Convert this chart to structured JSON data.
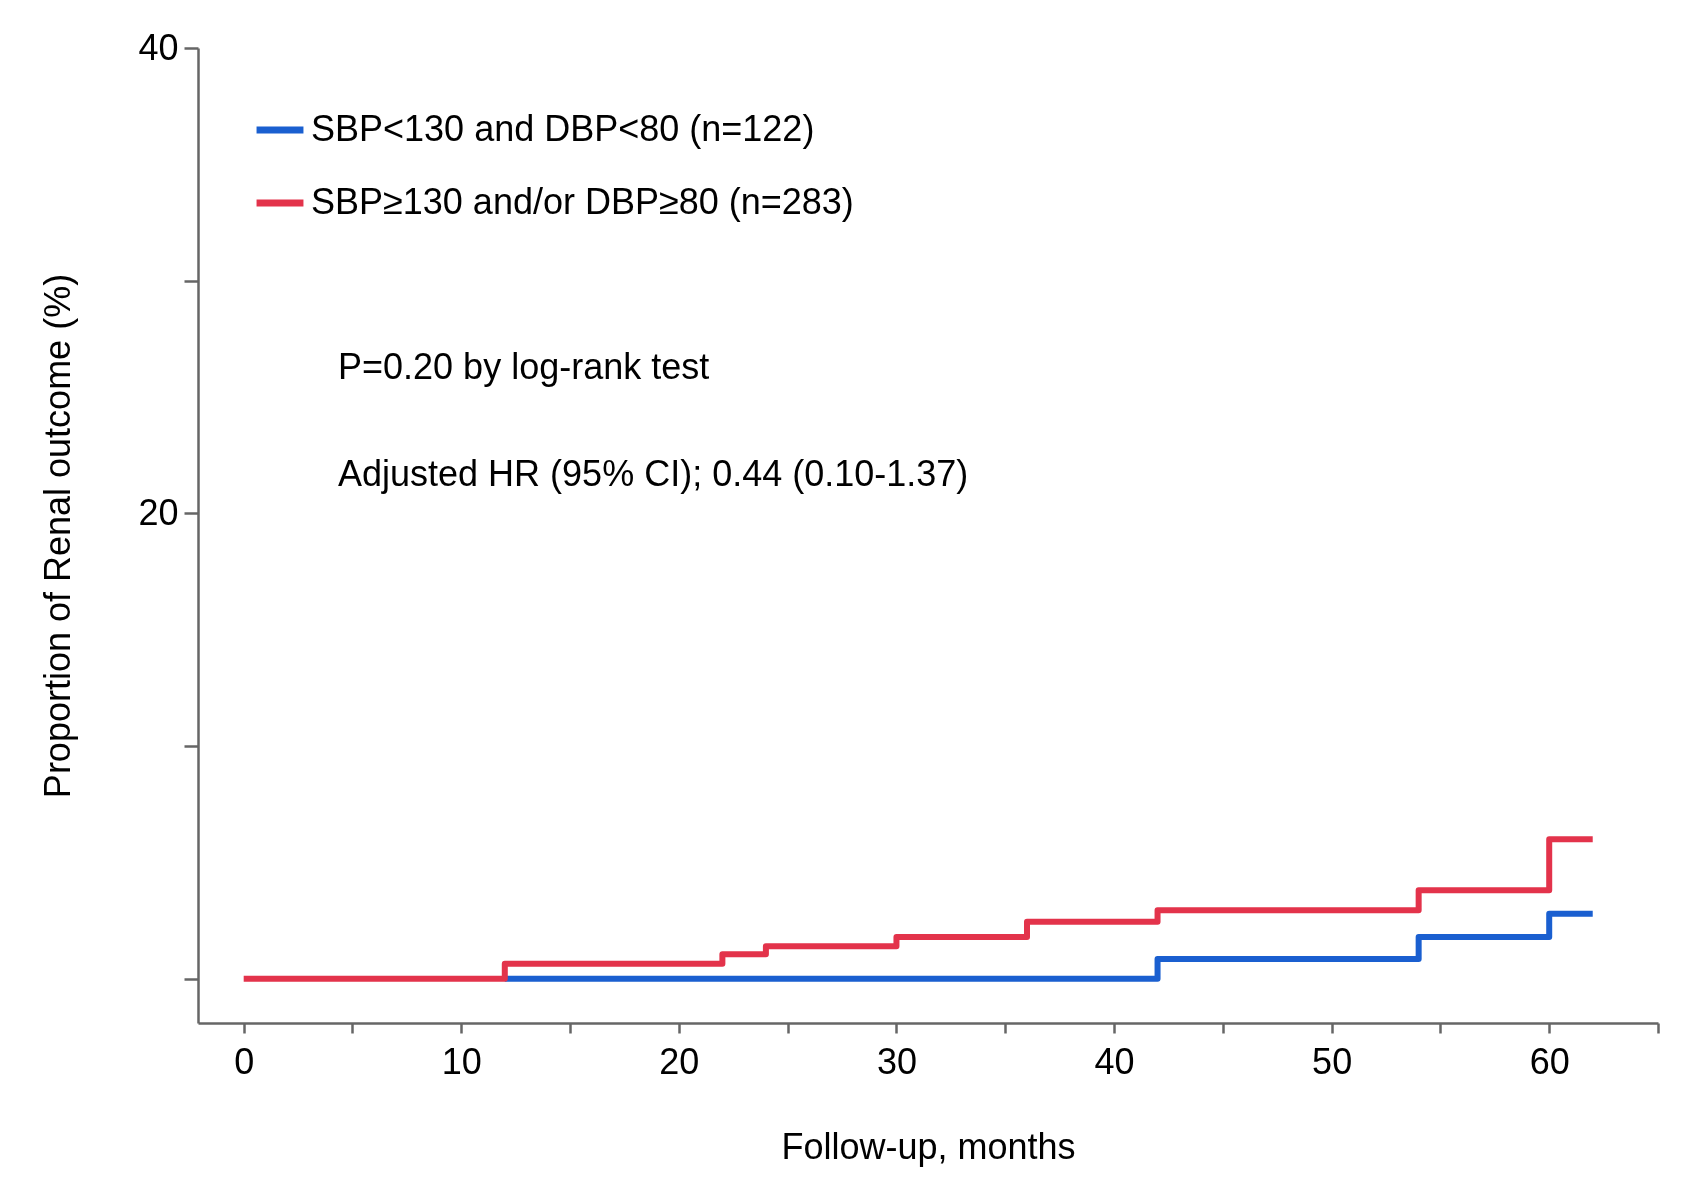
{
  "chart_data": {
    "type": "step",
    "xlabel": "Follow-up, months",
    "ylabel": "Proportion of Renal outcome (%)",
    "xlim": [
      -2.1,
      65
    ],
    "ylim": [
      -1.9,
      40
    ],
    "xticks": [
      0,
      {
        "value": 5,
        "label": null
      },
      10,
      {
        "value": 15,
        "label": null
      },
      20,
      {
        "value": 25,
        "label": null
      },
      30,
      {
        "value": 35,
        "label": null
      },
      40,
      {
        "value": 45,
        "label": null
      },
      50,
      {
        "value": 55,
        "label": null
      },
      60,
      {
        "value": 65,
        "label": null
      }
    ],
    "yticks": [
      {
        "value": 0,
        "label": null
      },
      {
        "value": 10,
        "label": null
      },
      20,
      {
        "value": 30,
        "label": null
      },
      40
    ],
    "grid": false,
    "legend": "top left",
    "marker": "none",
    "line_style": "solid",
    "series": [
      {
        "name": "SBP<130 and DBP<80 (n=122)",
        "color": "#1a5fd0",
        "x": [
          12,
          42,
          54,
          60,
          62
        ],
        "values": [
          0,
          0.85,
          1.8,
          2.8,
          2.8
        ]
      },
      {
        "name": "SBP≥130 and/or DBP≥80 (n=283)",
        "color": "#e3334b",
        "x": [
          0,
          12,
          22,
          24,
          30,
          36,
          42,
          54,
          60,
          62
        ],
        "values": [
          0,
          0.65,
          1.05,
          1.4,
          1.8,
          2.45,
          2.95,
          3.8,
          6.0,
          6.0
        ]
      }
    ],
    "annotations": [
      "P=0.20 by log-rank test",
      "Adjusted HR (95% CI); 0.44 (0.10-1.37)"
    ]
  }
}
